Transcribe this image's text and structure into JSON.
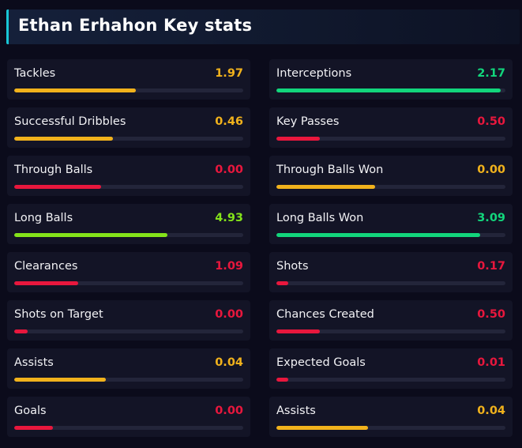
{
  "header": {
    "title": "Ethan Erhahon Key stats"
  },
  "colors": {
    "accent": "#18c7d6",
    "yellow": "#f1b21c",
    "green": "#12d67c",
    "lime": "#84e31a",
    "red": "#e8173d"
  },
  "stats": [
    {
      "label": "Tackles",
      "value": "1.97",
      "fill": 0.53,
      "color": "#f1b21c"
    },
    {
      "label": "Interceptions",
      "value": "2.17",
      "fill": 0.98,
      "color": "#12d67c"
    },
    {
      "label": "Successful Dribbles",
      "value": "0.46",
      "fill": 0.43,
      "color": "#f1b21c"
    },
    {
      "label": "Key Passes",
      "value": "0.50",
      "fill": 0.19,
      "color": "#e8173d"
    },
    {
      "label": "Through Balls",
      "value": "0.00",
      "fill": 0.38,
      "color": "#e8173d"
    },
    {
      "label": "Through Balls Won",
      "value": "0.00",
      "fill": 0.43,
      "color": "#f1b21c"
    },
    {
      "label": "Long Balls",
      "value": "4.93",
      "fill": 0.67,
      "color": "#84e31a"
    },
    {
      "label": "Long Balls Won",
      "value": "3.09",
      "fill": 0.89,
      "color": "#12d67c"
    },
    {
      "label": "Clearances",
      "value": "1.09",
      "fill": 0.28,
      "color": "#e8173d"
    },
    {
      "label": "Shots",
      "value": "0.17",
      "fill": 0.05,
      "color": "#e8173d"
    },
    {
      "label": "Shots on Target",
      "value": "0.00",
      "fill": 0.06,
      "color": "#e8173d"
    },
    {
      "label": "Chances Created",
      "value": "0.50",
      "fill": 0.19,
      "color": "#e8173d"
    },
    {
      "label": "Assists",
      "value": "0.04",
      "fill": 0.4,
      "color": "#f1b21c"
    },
    {
      "label": "Expected Goals",
      "value": "0.01",
      "fill": 0.05,
      "color": "#e8173d"
    },
    {
      "label": "Goals",
      "value": "0.00",
      "fill": 0.17,
      "color": "#e8173d"
    },
    {
      "label": "Assists",
      "value": "0.04",
      "fill": 0.4,
      "color": "#f1b21c"
    }
  ]
}
